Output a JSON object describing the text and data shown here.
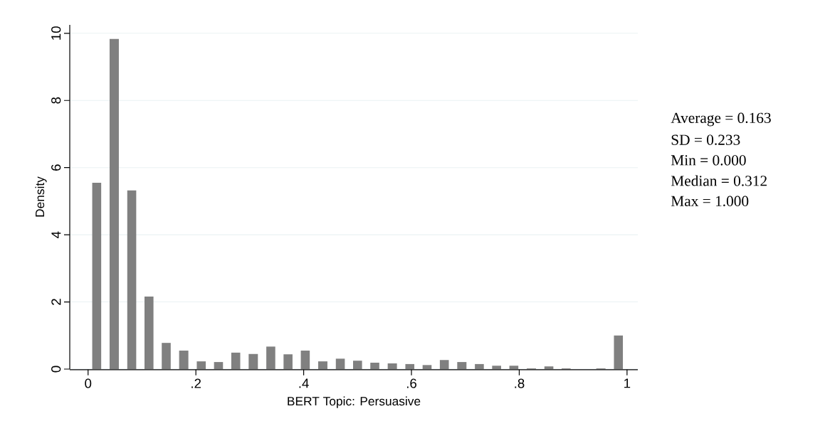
{
  "chart_data": {
    "type": "histogram",
    "xlabel": "BERT Topic: Persuasive",
    "ylabel": "Density",
    "bins": [
      0,
      0.032,
      0.065,
      0.097,
      0.129,
      0.161,
      0.194,
      0.226,
      0.258,
      0.29,
      0.323,
      0.355,
      0.387,
      0.419,
      0.452,
      0.484,
      0.516,
      0.548,
      0.581,
      0.613,
      0.645,
      0.677,
      0.71,
      0.742,
      0.774,
      0.806,
      0.839,
      0.871,
      0.903,
      0.935,
      0.968,
      1
    ],
    "values": [
      5.55,
      9.83,
      5.32,
      2.16,
      0.78,
      0.55,
      0.23,
      0.21,
      0.49,
      0.45,
      0.67,
      0.44,
      0.55,
      0.23,
      0.31,
      0.25,
      0.19,
      0.17,
      0.15,
      0.12,
      0.27,
      0.21,
      0.15,
      0.1,
      0.1,
      0.02,
      0.08,
      0.02,
      0,
      0.02,
      1.0
    ],
    "color": "#808080",
    "xlim": [
      -0.034,
      1.02
    ],
    "ylim": [
      0,
      10.25
    ],
    "xticks": [
      {
        "value": 0,
        "label": "0"
      },
      {
        "value": 0.2,
        "label": ".2"
      },
      {
        "value": 0.4,
        "label": ".4"
      },
      {
        "value": 0.6,
        "label": ".6"
      },
      {
        "value": 0.8,
        "label": ".8"
      },
      {
        "value": 1,
        "label": "1"
      }
    ],
    "yticks": [
      0,
      2,
      4,
      6,
      8,
      10
    ],
    "grid": "y",
    "annotations": [
      "Average  =  0.163",
      "SD  =  0.233",
      "Min  =  0.000",
      "Median  =  0.312",
      "Max  =  1.000"
    ]
  }
}
